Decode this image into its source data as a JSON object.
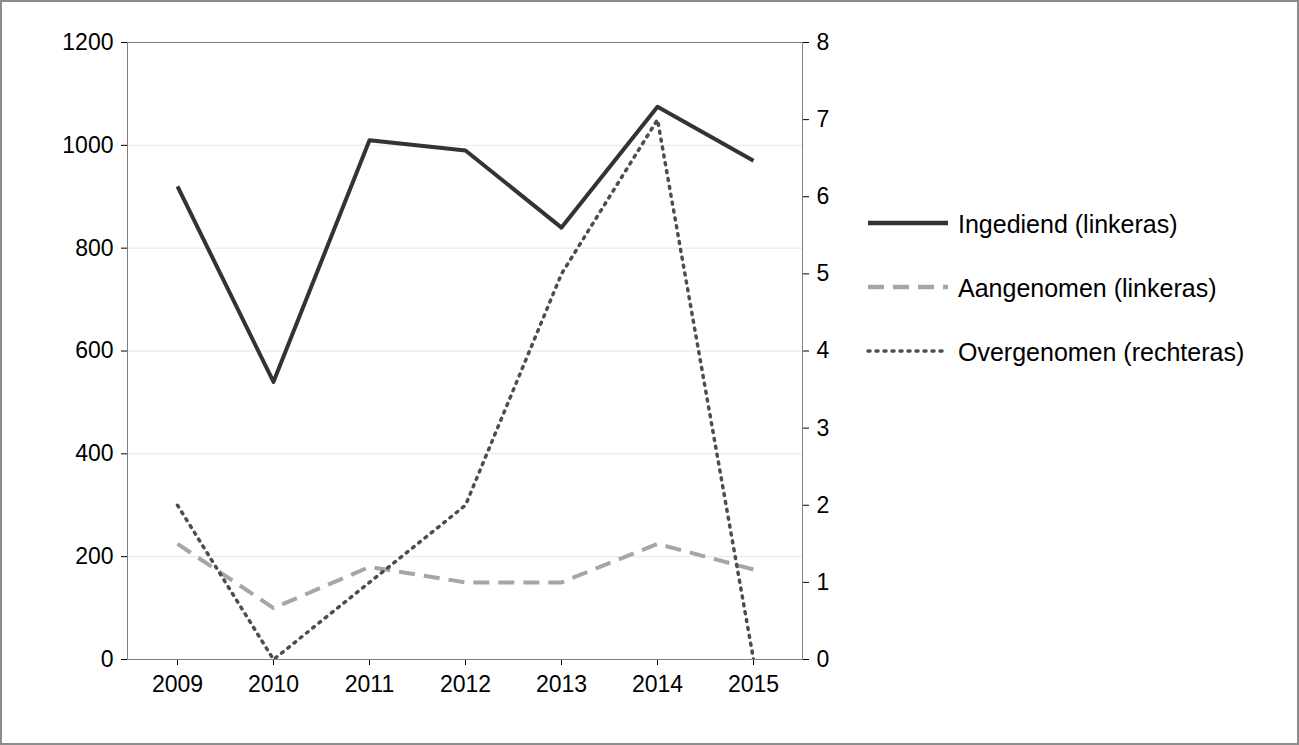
{
  "chart_data": {
    "type": "line",
    "categories": [
      "2009",
      "2010",
      "2011",
      "2012",
      "2013",
      "2014",
      "2015"
    ],
    "series": [
      {
        "name": "Ingediend (linkeras)",
        "color": "#333333",
        "line_style": "solid",
        "values": [
          920,
          540,
          1010,
          990,
          840,
          1075,
          970
        ]
      },
      {
        "name": "Aangenomen (linkeras)",
        "color": "#a6a6a6",
        "line_style": "dashed",
        "values": [
          225,
          100,
          180,
          150,
          150,
          225,
          175
        ]
      },
      {
        "name": "Overgenomen (rechteras)",
        "color": "#4d4d4d",
        "line_style": "dotted",
        "axis": "y2",
        "values": [
          2,
          0,
          1,
          2,
          5,
          7,
          0
        ]
      }
    ],
    "ylim": [
      0,
      1200
    ],
    "yticks": [
      0,
      200,
      400,
      600,
      800,
      1000,
      1200
    ],
    "y2lim": [
      0,
      8
    ],
    "y2ticks": [
      0,
      1,
      2,
      3,
      4,
      5,
      6,
      7,
      8
    ],
    "grid": true,
    "legend": "right"
  }
}
